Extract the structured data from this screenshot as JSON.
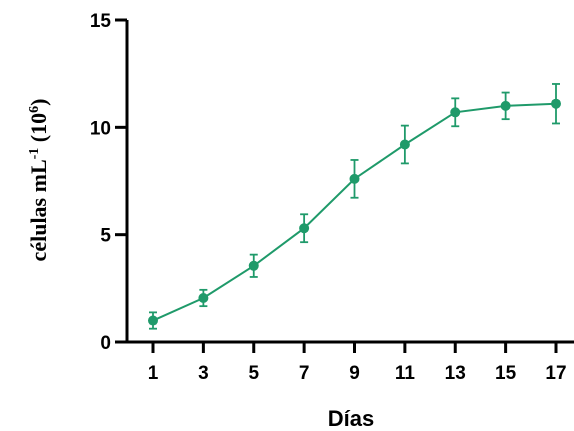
{
  "chart_data": {
    "type": "line",
    "title": "",
    "xlabel": "Días",
    "ylabel": {
      "main": "células mL",
      "exp1": "-1",
      "mid": " (10",
      "exp2": "6",
      "end": ")"
    },
    "x": [
      1,
      3,
      5,
      7,
      9,
      11,
      13,
      15,
      17
    ],
    "series": [
      {
        "values": [
          1.0,
          2.05,
          3.55,
          5.3,
          7.6,
          9.2,
          10.7,
          11.0,
          11.1
        ],
        "error": [
          0.38,
          0.38,
          0.52,
          0.65,
          0.88,
          0.88,
          0.65,
          0.62,
          0.92
        ]
      }
    ],
    "xticks": [
      "1",
      "3",
      "5",
      "7",
      "9",
      "11",
      "13",
      "15",
      "17"
    ],
    "yticks": [
      "0",
      "5",
      "10",
      "15"
    ],
    "ylim": [
      0,
      15
    ],
    "grid": false,
    "legend": "none",
    "color": "#1f9a6a"
  }
}
